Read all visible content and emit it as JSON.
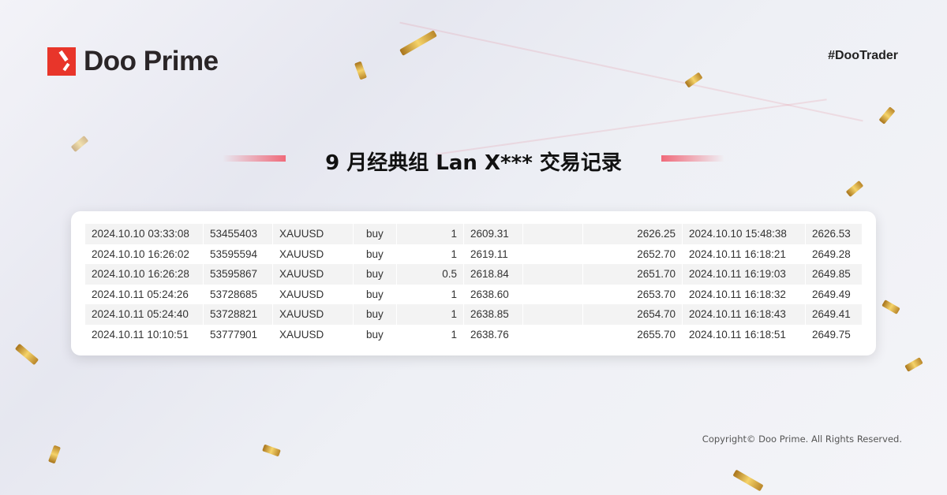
{
  "brand": {
    "name": "Doo Prime",
    "hashtag": "#DooTrader",
    "copyright": "Copyright© Doo Prime. All Rights Reserved."
  },
  "title": "9 月经典组 Lan X*** 交易记录",
  "colors": {
    "brand_red": "#e8352a",
    "row_alt": "#f3f3f3"
  },
  "trades": [
    [
      "2024.10.10 03:33:08",
      "53455403",
      "XAUUSD",
      "buy",
      "1",
      "2609.31",
      "",
      "2626.25",
      "2024.10.10 15:48:38",
      "2626.53"
    ],
    [
      "2024.10.10 16:26:02",
      "53595594",
      "XAUUSD",
      "buy",
      "1",
      "2619.11",
      "",
      "2652.70",
      "2024.10.11 16:18:21",
      "2649.28"
    ],
    [
      "2024.10.10 16:26:28",
      "53595867",
      "XAUUSD",
      "buy",
      "0.5",
      "2618.84",
      "",
      "2651.70",
      "2024.10.11 16:19:03",
      "2649.85"
    ],
    [
      "2024.10.11 05:24:26",
      "53728685",
      "XAUUSD",
      "buy",
      "1",
      "2638.60",
      "",
      "2653.70",
      "2024.10.11 16:18:32",
      "2649.49"
    ],
    [
      "2024.10.11 05:24:40",
      "53728821",
      "XAUUSD",
      "buy",
      "1",
      "2638.85",
      "",
      "2654.70",
      "2024.10.11 16:18:43",
      "2649.41"
    ],
    [
      "2024.10.11 10:10:51",
      "53777901",
      "XAUUSD",
      "buy",
      "1",
      "2638.76",
      "",
      "2655.70",
      "2024.10.11 16:18:51",
      "2649.75"
    ]
  ]
}
